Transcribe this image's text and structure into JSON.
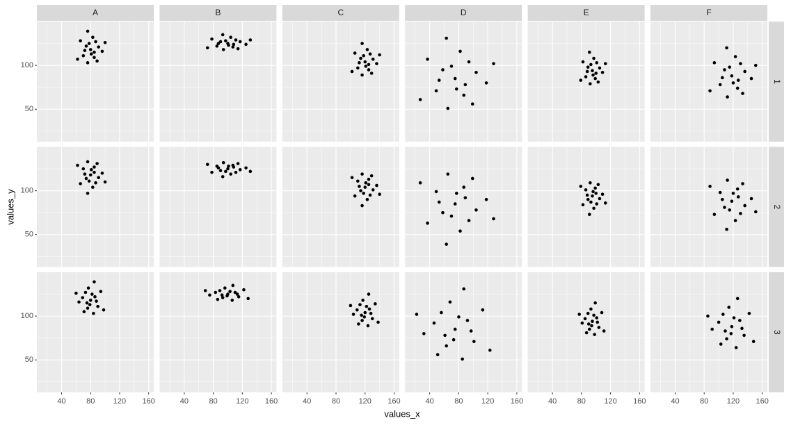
{
  "chart_data": {
    "type": "scatter",
    "xlabel": "values_x",
    "ylabel": "values_y",
    "columns": [
      "A",
      "B",
      "C",
      "D",
      "E",
      "F"
    ],
    "rows": [
      "1",
      "2",
      "3"
    ],
    "xlim": [
      6,
      167
    ],
    "ylim": [
      13,
      150
    ],
    "xticks": [
      40,
      80,
      120,
      160
    ],
    "yticks": [
      50,
      100
    ],
    "x_minor_grid": [
      20,
      60,
      100,
      140
    ],
    "y_minor_grid": [
      25,
      75,
      125
    ],
    "grid": true,
    "color": "#000000",
    "panels": [
      [
        {
          "x": [
            80,
            85,
            74,
            91,
            70,
            83,
            76,
            96,
            66,
            87,
            78,
            85,
            72,
            81,
            89,
            76,
            100,
            62
          ],
          "y": [
            118,
            109,
            122,
            121,
            111,
            132,
            103,
            116,
            128,
            127,
            125,
            115,
            117,
            113,
            105,
            139,
            126,
            107
          ]
        },
        {
          "x": [
            100,
            107,
            90,
            117,
            85,
            104,
            94,
            125,
            78,
            111,
            97,
            108,
            87,
            101,
            114,
            93,
            131,
            72
          ],
          "y": [
            125,
            121,
            127,
            127,
            122,
            132,
            118,
            124,
            130,
            129,
            128,
            124,
            125,
            123,
            119,
            135,
            129,
            120
          ]
        },
        {
          "x": [
            120,
            125,
            114,
            131,
            110,
            123,
            116,
            136,
            106,
            127,
            118,
            125,
            112,
            121,
            129,
            116,
            140,
            102
          ],
          "y": [
            104,
            95,
            108,
            107,
            97,
            118,
            89,
            102,
            114,
            113,
            111,
            101,
            103,
            99,
            91,
            125,
            112,
            93
          ]
        },
        {
          "x": [
            75,
            87,
            58,
            104,
            49,
            82,
            65,
            118,
            37,
            94,
            70,
            89,
            53,
            77,
            99,
            63,
            128,
            27
          ],
          "y": [
            85,
            66,
            95,
            92,
            71,
            116,
            51,
            80,
            107,
            104,
            99,
            78,
            83,
            73,
            56,
            131,
            102,
            61
          ]
        },
        {
          "x": [
            95,
            99,
            89,
            105,
            86,
            97,
            92,
            109,
            82,
            101,
            93,
            100,
            88,
            96,
            103,
            91,
            113,
            79
          ],
          "y": [
            94,
            85,
            98,
            97,
            87,
            108,
            79,
            92,
            104,
            103,
            101,
            91,
            93,
            89,
            81,
            115,
            102,
            83
          ]
        },
        {
          "x": [
            118,
            126,
            108,
            136,
            102,
            123,
            112,
            145,
            94,
            130,
            115,
            127,
            105,
            120,
            133,
            111,
            151,
            88
          ],
          "y": [
            88,
            74,
            95,
            93,
            78,
            110,
            64,
            85,
            103,
            102,
            98,
            83,
            86,
            80,
            68,
            120,
            100,
            71
          ]
        }
      ],
      [
        {
          "x": [
            80,
            85,
            74,
            91,
            70,
            83,
            76,
            96,
            66,
            87,
            78,
            85,
            72,
            81,
            89,
            76,
            100,
            62
          ],
          "y": [
            118,
            127,
            114,
            115,
            125,
            104,
            133,
            120,
            108,
            109,
            111,
            121,
            119,
            124,
            131,
            97,
            110,
            129
          ]
        },
        {
          "x": [
            100,
            107,
            90,
            117,
            85,
            104,
            94,
            125,
            78,
            111,
            97,
            108,
            87,
            101,
            114,
            93,
            131,
            72
          ],
          "y": [
            125,
            129,
            123,
            124,
            128,
            119,
            132,
            126,
            121,
            121,
            122,
            127,
            126,
            128,
            131,
            116,
            122,
            130
          ]
        },
        {
          "x": [
            120,
            125,
            114,
            131,
            110,
            123,
            116,
            136,
            106,
            127,
            118,
            125,
            112,
            121,
            129,
            116,
            140,
            102
          ],
          "y": [
            104,
            113,
            100,
            101,
            111,
            90,
            119,
            106,
            94,
            95,
            97,
            107,
            105,
            109,
            117,
            83,
            96,
            115
          ]
        },
        {
          "x": [
            75,
            87,
            58,
            104,
            49,
            82,
            65,
            118,
            37,
            94,
            70,
            89,
            53,
            77,
            99,
            63,
            128,
            27
          ],
          "y": [
            85,
            104,
            75,
            78,
            99,
            54,
            119,
            90,
            63,
            66,
            71,
            92,
            87,
            97,
            114,
            39,
            68,
            109
          ]
        },
        {
          "x": [
            95,
            99,
            89,
            105,
            86,
            97,
            92,
            109,
            82,
            101,
            93,
            100,
            88,
            96,
            103,
            91,
            113,
            79
          ],
          "y": [
            94,
            103,
            90,
            91,
            101,
            80,
            109,
            96,
            84,
            85,
            87,
            97,
            95,
            99,
            107,
            73,
            86,
            105
          ]
        },
        {
          "x": [
            118,
            126,
            108,
            136,
            102,
            123,
            112,
            145,
            94,
            130,
            115,
            127,
            105,
            120,
            133,
            111,
            151,
            88
          ],
          "y": [
            88,
            102,
            81,
            83,
            98,
            66,
            112,
            91,
            73,
            74,
            78,
            93,
            90,
            97,
            108,
            56,
            76,
            105
          ]
        }
      ],
      [
        {
          "x": [
            80,
            76,
            86,
            69,
            90,
            77,
            84,
            64,
            94,
            73,
            82,
            75,
            88,
            79,
            71,
            85,
            60,
            98
          ],
          "y": [
            118,
            109,
            122,
            121,
            111,
            132,
            103,
            116,
            128,
            127,
            125,
            115,
            117,
            113,
            105,
            139,
            126,
            107
          ]
        },
        {
          "x": [
            100,
            93,
            110,
            83,
            115,
            96,
            106,
            75,
            122,
            89,
            103,
            92,
            113,
            99,
            86,
            107,
            69,
            128
          ],
          "y": [
            125,
            121,
            127,
            127,
            122,
            132,
            118,
            124,
            130,
            129,
            128,
            124,
            125,
            123,
            119,
            135,
            129,
            120
          ]
        },
        {
          "x": [
            120,
            116,
            126,
            109,
            130,
            117,
            124,
            104,
            134,
            113,
            122,
            115,
            128,
            119,
            111,
            125,
            100,
            138
          ],
          "y": [
            104,
            95,
            108,
            107,
            97,
            118,
            89,
            102,
            114,
            113,
            111,
            101,
            103,
            99,
            91,
            125,
            112,
            93
          ]
        },
        {
          "x": [
            75,
            63,
            92,
            46,
            101,
            68,
            85,
            32,
            113,
            56,
            80,
            61,
            97,
            73,
            51,
            87,
            22,
            123
          ],
          "y": [
            85,
            66,
            95,
            92,
            71,
            116,
            51,
            80,
            107,
            104,
            99,
            78,
            83,
            73,
            56,
            131,
            102,
            61
          ]
        },
        {
          "x": [
            95,
            91,
            101,
            85,
            104,
            93,
            98,
            81,
            108,
            89,
            97,
            90,
            102,
            94,
            87,
            99,
            77,
            111
          ],
          "y": [
            94,
            85,
            98,
            97,
            87,
            108,
            79,
            92,
            104,
            103,
            101,
            91,
            93,
            89,
            81,
            115,
            102,
            83
          ]
        },
        {
          "x": [
            118,
            111,
            129,
            100,
            135,
            114,
            124,
            91,
            142,
            106,
            121,
            109,
            132,
            117,
            103,
            126,
            85,
            148
          ],
          "y": [
            88,
            74,
            95,
            93,
            78,
            110,
            64,
            85,
            103,
            102,
            98,
            83,
            86,
            80,
            68,
            120,
            100,
            71
          ]
        }
      ]
    ]
  }
}
